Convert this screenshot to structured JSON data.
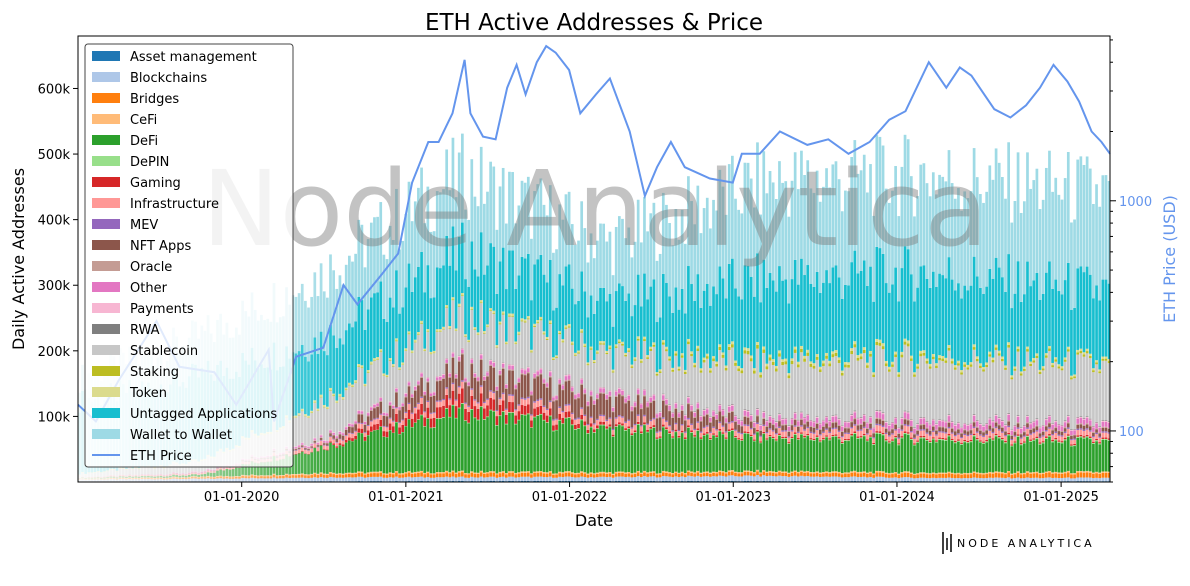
{
  "chart_data": {
    "type": "bar",
    "subtype": "stacked-bar-with-line-overlay",
    "title": "ETH Active Addresses & Price",
    "xlabel": "Date",
    "ylabel": "Daily Active Addresses",
    "y2label": "ETH Price (USD)",
    "y2scale": "log",
    "xlim": [
      "2019-01-01",
      "2025-04-20"
    ],
    "ylim": [
      0,
      680000
    ],
    "y2lim": [
      60,
      5200
    ],
    "x_ticks": [
      "01-01-2020",
      "01-01-2021",
      "01-01-2022",
      "01-01-2023",
      "01-01-2024",
      "01-01-2025"
    ],
    "y_ticks": [
      "100k",
      "200k",
      "300k",
      "400k",
      "500k",
      "600k"
    ],
    "y2_ticks": [
      "100",
      "1000"
    ],
    "grid": false,
    "legend_position": "upper-left",
    "watermark": "Node Analytica",
    "logo_text": "NODE ANALYTICA",
    "series": [
      {
        "name": "Asset management",
        "color": "#1f77b4",
        "values": [
          600,
          900,
          1200,
          1400,
          1500,
          1400,
          1300,
          1200
        ]
      },
      {
        "name": "Blockchains",
        "color": "#aec7e8",
        "values": [
          3000,
          4000,
          6000,
          6000,
          6000,
          8000,
          5000,
          5000
        ]
      },
      {
        "name": "Bridges",
        "color": "#ff7f0e",
        "values": [
          500,
          2000,
          5000,
          6000,
          5000,
          5000,
          6000,
          7000
        ]
      },
      {
        "name": "CeFi",
        "color": "#ffbb78",
        "values": [
          1000,
          1000,
          2000,
          2000,
          2000,
          2000,
          2000,
          2000
        ]
      },
      {
        "name": "DeFi",
        "color": "#2ca02c",
        "values": [
          1000,
          3000,
          40000,
          90000,
          65000,
          50000,
          50000,
          45000
        ]
      },
      {
        "name": "DePIN",
        "color": "#98df8a",
        "values": [
          0,
          0,
          0,
          1000,
          1000,
          1000,
          1500,
          1500
        ]
      },
      {
        "name": "Gaming",
        "color": "#d62728",
        "values": [
          0,
          0,
          1000,
          20000,
          3000,
          2000,
          2000,
          2000
        ]
      },
      {
        "name": "Infrastructure",
        "color": "#ff9896",
        "values": [
          1000,
          2000,
          6000,
          9000,
          8000,
          8000,
          8000,
          7000
        ]
      },
      {
        "name": "MEV",
        "color": "#9467bd",
        "values": [
          0,
          0,
          1000,
          2000,
          2000,
          2000,
          2000,
          2000
        ]
      },
      {
        "name": "NFT Apps",
        "color": "#8c564b",
        "values": [
          0,
          0,
          3000,
          35000,
          30000,
          8000,
          6000,
          5000
        ]
      },
      {
        "name": "Oracle",
        "color": "#c49c94",
        "values": [
          0,
          500,
          1000,
          1500,
          1500,
          1500,
          1500,
          1500
        ]
      },
      {
        "name": "Other",
        "color": "#e377c2",
        "values": [
          0,
          1000,
          3000,
          5000,
          6000,
          7000,
          8000,
          7000
        ]
      },
      {
        "name": "Payments",
        "color": "#f7b6d2",
        "values": [
          0,
          500,
          1000,
          1500,
          1500,
          1500,
          1500,
          1500
        ]
      },
      {
        "name": "RWA",
        "color": "#7f7f7f",
        "values": [
          0,
          0,
          0,
          500,
          500,
          1000,
          1000,
          1000
        ]
      },
      {
        "name": "Stablecoin",
        "color": "#c7c7c7",
        "values": [
          5000,
          15000,
          55000,
          70000,
          60000,
          80000,
          90000,
          85000
        ]
      },
      {
        "name": "Staking",
        "color": "#bcbd22",
        "values": [
          0,
          0,
          1000,
          1000,
          2000,
          5000,
          4000,
          3000
        ]
      },
      {
        "name": "Token",
        "color": "#dbdb8d",
        "values": [
          1000,
          2000,
          3000,
          3000,
          3000,
          4000,
          4000,
          3000
        ]
      },
      {
        "name": "Untagged Applications",
        "color": "#17becf",
        "values": [
          110000,
          130000,
          90000,
          95000,
          75000,
          120000,
          125000,
          110000
        ]
      },
      {
        "name": "Wallet to Wallet",
        "color": "#9edae5",
        "values": [
          35000,
          60000,
          100000,
          120000,
          90000,
          150000,
          150000,
          150000
        ]
      }
    ],
    "bar_periods": [
      "2019-01-01",
      "2019-10-01",
      "2020-07-01",
      "2021-05-01",
      "2022-04-01",
      "2023-03-01",
      "2024-03-01",
      "2025-04-20"
    ],
    "bar_opacity_ramp": {
      "start": "2019-01-01",
      "end": "2020-09-01",
      "min_opacity": 0.12
    },
    "line": {
      "name": "ETH Price",
      "color": "#6495ed",
      "x": [
        "2019-01-01",
        "2019-02-10",
        "2019-04-01",
        "2019-06-25",
        "2019-08-15",
        "2019-11-01",
        "2019-12-20",
        "2020-03-01",
        "2020-03-13",
        "2020-05-01",
        "2020-07-01",
        "2020-08-15",
        "2020-09-15",
        "2020-11-01",
        "2020-12-15",
        "2021-01-15",
        "2021-02-20",
        "2021-03-15",
        "2021-04-15",
        "2021-05-12",
        "2021-05-25",
        "2021-06-22",
        "2021-07-20",
        "2021-08-15",
        "2021-09-05",
        "2021-09-25",
        "2021-10-20",
        "2021-11-10",
        "2021-12-01",
        "2021-12-31",
        "2022-01-25",
        "2022-03-01",
        "2022-04-01",
        "2022-05-15",
        "2022-06-18",
        "2022-07-15",
        "2022-08-15",
        "2022-09-15",
        "2022-11-10",
        "2022-12-31",
        "2023-01-20",
        "2023-03-01",
        "2023-04-15",
        "2023-06-15",
        "2023-08-01",
        "2023-09-15",
        "2023-11-01",
        "2023-12-15",
        "2024-01-20",
        "2024-03-12",
        "2024-04-20",
        "2024-05-20",
        "2024-06-15",
        "2024-08-05",
        "2024-09-10",
        "2024-10-15",
        "2024-11-15",
        "2024-12-15",
        "2025-01-15",
        "2025-02-10",
        "2025-03-10",
        "2025-04-01",
        "2025-04-20"
      ],
      "y": [
        130,
        110,
        165,
        300,
        190,
        180,
        130,
        225,
        110,
        210,
        230,
        430,
        355,
        460,
        590,
        1200,
        1800,
        1800,
        2400,
        4100,
        2400,
        1900,
        1850,
        3100,
        3900,
        2900,
        4000,
        4700,
        4400,
        3700,
        2400,
        2900,
        3400,
        2000,
        1050,
        1400,
        1800,
        1400,
        1250,
        1200,
        1600,
        1600,
        2000,
        1750,
        1850,
        1600,
        1800,
        2250,
        2450,
        4000,
        3100,
        3800,
        3500,
        2500,
        2300,
        2600,
        3100,
        3900,
        3300,
        2700,
        2000,
        1800,
        1600
      ]
    }
  }
}
